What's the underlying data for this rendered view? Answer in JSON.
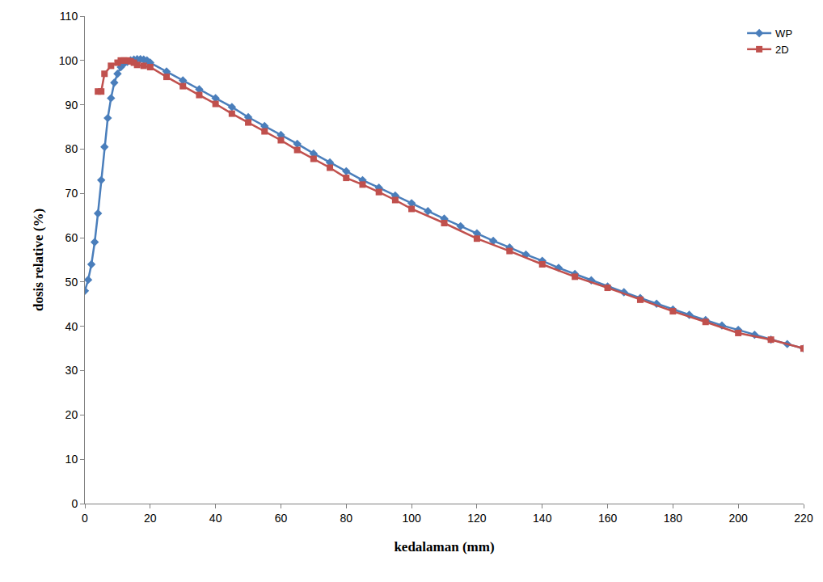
{
  "chart_data": {
    "type": "line",
    "x_label": "kedalaman (mm)",
    "y_label": "dosis relative (%)",
    "xlim": [
      0,
      220
    ],
    "xticks": [
      0,
      20,
      40,
      60,
      80,
      100,
      120,
      140,
      160,
      180,
      200,
      220
    ],
    "ylim": [
      0,
      110
    ],
    "yticks": [
      0,
      10,
      20,
      30,
      40,
      50,
      60,
      70,
      80,
      90,
      100,
      110
    ],
    "grid": false,
    "legend": "top-right",
    "series": [
      {
        "name": "WP",
        "color": "#4a7ebb",
        "marker": "diamond",
        "line_style": "solid",
        "x": [
          0,
          1,
          2,
          3,
          4,
          5,
          6,
          7,
          8,
          9,
          10,
          11,
          12,
          13,
          14,
          15,
          16,
          17,
          18,
          19,
          20,
          25,
          30,
          35,
          40,
          45,
          50,
          55,
          60,
          65,
          70,
          75,
          80,
          85,
          90,
          95,
          100,
          105,
          110,
          115,
          120,
          125,
          130,
          135,
          140,
          145,
          150,
          155,
          160,
          165,
          170,
          175,
          180,
          185,
          190,
          195,
          200,
          205,
          210,
          215,
          220
        ],
        "values": [
          48,
          50.5,
          54,
          59,
          65.5,
          73,
          80.5,
          87,
          91.5,
          95,
          97,
          98.5,
          99.3,
          99.7,
          100,
          100.2,
          100.3,
          100.3,
          100.2,
          100,
          99.5,
          97.5,
          95.5,
          93.5,
          91.5,
          89.5,
          87.2,
          85.2,
          83.2,
          81.2,
          79,
          77,
          75,
          73,
          71.3,
          69.5,
          67.8,
          66,
          64.3,
          62.6,
          61,
          59.3,
          57.8,
          56.2,
          54.8,
          53.2,
          51.8,
          50.4,
          49,
          47.7,
          46.4,
          45.1,
          43.8,
          42.6,
          41.4,
          40.2,
          39.2,
          38.1,
          37,
          36,
          35
        ]
      },
      {
        "name": "2D",
        "color": "#c0504d",
        "marker": "square",
        "line_style": "solid",
        "x": [
          4,
          5,
          6,
          8,
          10,
          11,
          12,
          13,
          14,
          15,
          16,
          18,
          20,
          25,
          30,
          35,
          40,
          45,
          50,
          55,
          60,
          65,
          70,
          75,
          80,
          85,
          90,
          95,
          100,
          110,
          120,
          130,
          140,
          150,
          160,
          170,
          180,
          190,
          200,
          210,
          220
        ],
        "values": [
          93,
          93,
          97,
          98.8,
          99.5,
          100,
          100,
          100,
          99.8,
          99.5,
          99,
          98.8,
          98.5,
          96.3,
          94.2,
          92.2,
          90.2,
          88,
          86,
          84,
          82,
          79.8,
          77.8,
          75.8,
          73.5,
          72,
          70.3,
          68.5,
          66.5,
          63.3,
          59.8,
          57,
          54,
          51.2,
          48.7,
          46,
          43.4,
          41,
          38.5,
          37,
          35
        ]
      }
    ]
  }
}
